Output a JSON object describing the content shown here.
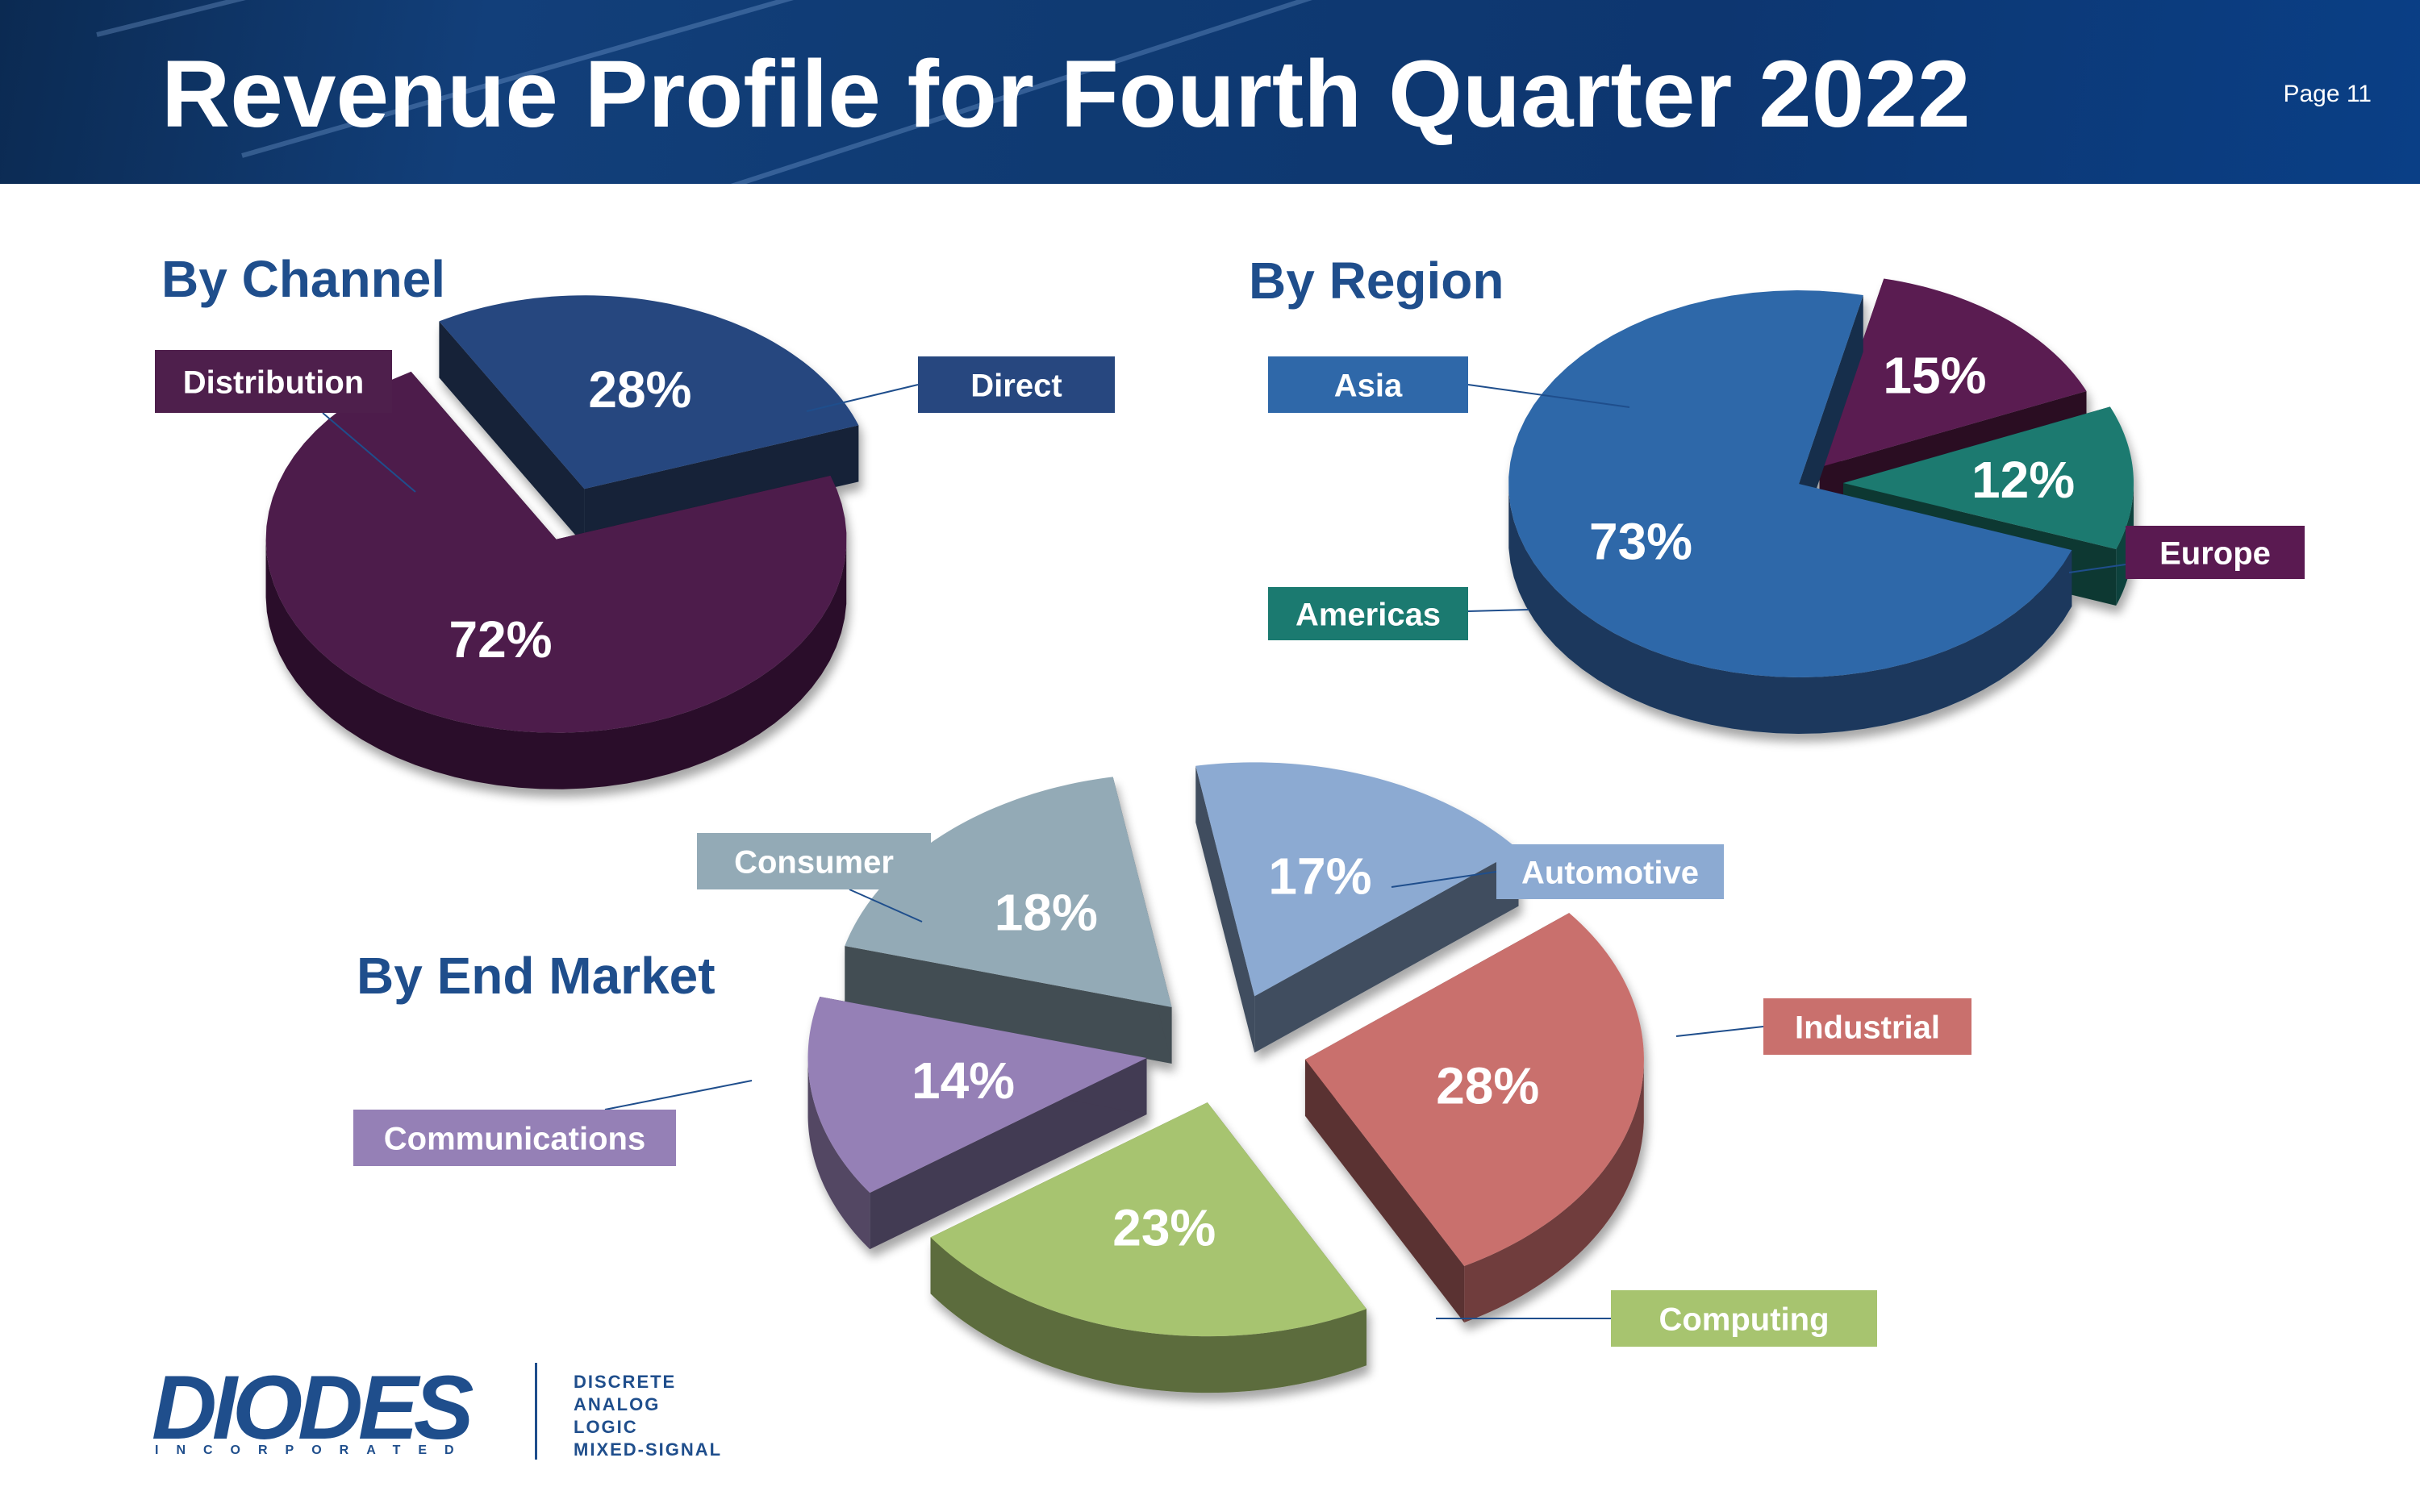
{
  "header": {
    "title": "Revenue Profile for Fourth Quarter 2022",
    "page": "Page 11"
  },
  "brand": {
    "name": "DIODES",
    "sub": "INCORPORATED",
    "lines": [
      "DISCRETE",
      "ANALOG",
      "LOGIC",
      "MIXED-SIGNAL"
    ],
    "color": "#1f4e8c"
  },
  "chart_data": [
    {
      "type": "pie",
      "title": "By Channel",
      "units": "%",
      "slices": [
        {
          "label": "Direct",
          "value": 28,
          "color": "#27477f"
        },
        {
          "label": "Distribution",
          "value": 72,
          "color": "#4e1f4c"
        }
      ]
    },
    {
      "type": "pie",
      "title": "By Region",
      "units": "%",
      "slices": [
        {
          "label": "Asia",
          "value": 73,
          "color": "#2f68a9"
        },
        {
          "label": "Europe",
          "value": 15,
          "color": "#5a1a51"
        },
        {
          "label": "Americas",
          "value": 12,
          "color": "#1b7a70"
        }
      ]
    },
    {
      "type": "pie",
      "title": "By End Market",
      "units": "%",
      "slices": [
        {
          "label": "Automotive",
          "value": 17,
          "color": "#8caad2"
        },
        {
          "label": "Industrial",
          "value": 28,
          "color": "#c9706d"
        },
        {
          "label": "Computing",
          "value": 23,
          "color": "#a7c46f"
        },
        {
          "label": "Communications",
          "value": 14,
          "color": "#9580b6"
        },
        {
          "label": "Consumer",
          "value": 18,
          "color": "#93aab6"
        }
      ]
    }
  ]
}
